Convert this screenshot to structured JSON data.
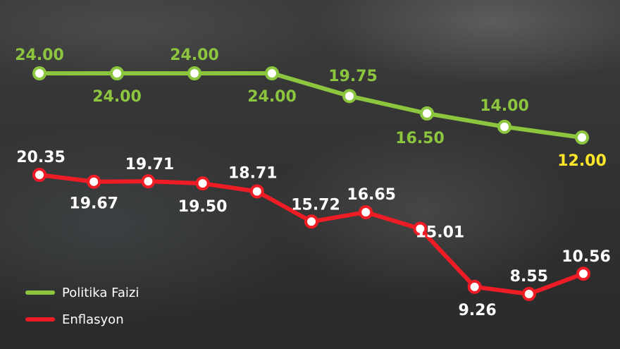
{
  "chart_data": {
    "type": "line",
    "title": "",
    "xlabel": "",
    "ylabel": "",
    "ylim": [
      7,
      25
    ],
    "grid": false,
    "legend_placement": "bottom-left",
    "series": [
      {
        "name": "Politika Faizi",
        "color": "#8cc63f",
        "values": [
          24.0,
          24.0,
          24.0,
          24.0,
          19.75,
          16.5,
          14.0,
          12.0
        ],
        "labels": [
          "24.00",
          "24.00",
          "24.00",
          "24.00",
          "19.75",
          "16.50",
          "14.00",
          "12.00"
        ],
        "highlight_color": "#ffe629"
      },
      {
        "name": "Enflasyon",
        "color": "#ee1c25",
        "values": [
          20.35,
          19.67,
          19.71,
          19.5,
          18.71,
          15.72,
          16.65,
          15.01,
          9.26,
          8.55,
          10.56
        ],
        "labels": [
          "20.35",
          "19.67",
          "19.71",
          "19.50",
          "18.71",
          "15.72",
          "16.65",
          "15.01",
          "9.26",
          "8.55",
          "10.56"
        ]
      }
    ]
  },
  "legend": {
    "items": [
      {
        "label": "Politika Faizi",
        "color": "#8cc63f"
      },
      {
        "label": "Enflasyon",
        "color": "#ee1c25"
      }
    ]
  }
}
